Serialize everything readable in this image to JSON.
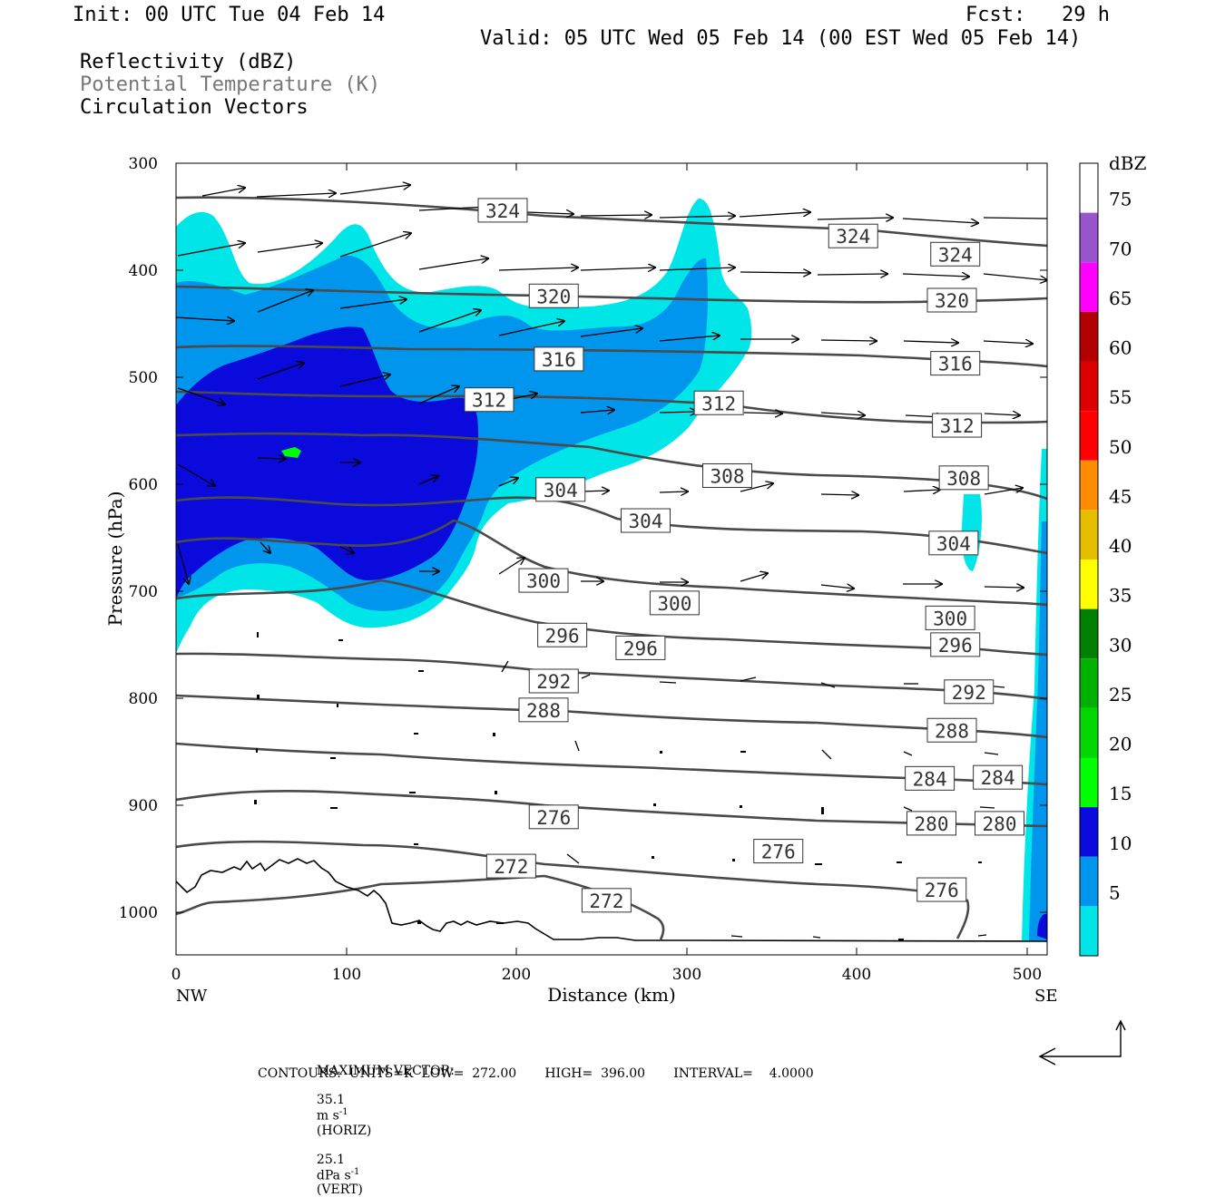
{
  "header": {
    "init": "Init: 00 UTC Tue 04 Feb 14",
    "fcst": "Fcst:   29 h",
    "valid": "Valid: 05 UTC Wed 05 Feb 14 (00 EST Wed 05 Feb 14)",
    "fields": [
      "Reflectivity (dBZ)",
      "Potential Temperature (K)",
      "Circulation Vectors"
    ]
  },
  "colors": {
    "refl_5": "#00e5e8",
    "refl_10": "#0096ee",
    "refl_15": "#0a0adc",
    "refl_20": "#00ff00",
    "contour": "#4a4a4a",
    "grey_text": "#777777"
  },
  "chart_data": {
    "type": "contour",
    "xlabel": "Distance (km)",
    "ylabel": "Pressure (hPa)",
    "xlim": [
      0,
      512
    ],
    "ylim": [
      300,
      1040
    ],
    "y_inverted": true,
    "x_ticks": [
      "0",
      "100",
      "200",
      "300",
      "400",
      "500"
    ],
    "y_ticks": [
      "300",
      "400",
      "500",
      "600",
      "700",
      "800",
      "900",
      "1000"
    ],
    "x_end_labels": {
      "left": "NW",
      "right": "SE"
    },
    "contour_field": "Potential Temperature (K)",
    "contour_labels": [
      {
        "value": "324",
        "x": 192,
        "p": 344
      },
      {
        "value": "324",
        "x": 398,
        "p": 368
      },
      {
        "value": "324",
        "x": 458,
        "p": 385
      },
      {
        "value": "320",
        "x": 222,
        "p": 424
      },
      {
        "value": "320",
        "x": 456,
        "p": 428
      },
      {
        "value": "316",
        "x": 225,
        "p": 483
      },
      {
        "value": "316",
        "x": 458,
        "p": 487
      },
      {
        "value": "312",
        "x": 184,
        "p": 521
      },
      {
        "value": "312",
        "x": 319,
        "p": 524
      },
      {
        "value": "312",
        "x": 459,
        "p": 545
      },
      {
        "value": "308",
        "x": 324,
        "p": 592
      },
      {
        "value": "308",
        "x": 463,
        "p": 594
      },
      {
        "value": "304",
        "x": 226,
        "p": 605
      },
      {
        "value": "304",
        "x": 276,
        "p": 634
      },
      {
        "value": "304",
        "x": 457,
        "p": 655
      },
      {
        "value": "300",
        "x": 216,
        "p": 690
      },
      {
        "value": "300",
        "x": 293,
        "p": 711
      },
      {
        "value": "300",
        "x": 455,
        "p": 725
      },
      {
        "value": "296",
        "x": 227,
        "p": 741
      },
      {
        "value": "296",
        "x": 273,
        "p": 753
      },
      {
        "value": "296",
        "x": 458,
        "p": 750
      },
      {
        "value": "292",
        "x": 222,
        "p": 784
      },
      {
        "value": "292",
        "x": 466,
        "p": 794
      },
      {
        "value": "288",
        "x": 216,
        "p": 811
      },
      {
        "value": "288",
        "x": 456,
        "p": 830
      },
      {
        "value": "284",
        "x": 443,
        "p": 875
      },
      {
        "value": "284",
        "x": 483,
        "p": 874
      },
      {
        "value": "280",
        "x": 444,
        "p": 917
      },
      {
        "value": "280",
        "x": 484,
        "p": 917
      },
      {
        "value": "276",
        "x": 222,
        "p": 911
      },
      {
        "value": "276",
        "x": 354,
        "p": 943
      },
      {
        "value": "276",
        "x": 450,
        "p": 979
      },
      {
        "value": "272",
        "x": 197,
        "p": 957
      },
      {
        "value": "272",
        "x": 253,
        "p": 989
      }
    ],
    "colorbar": {
      "title": "dBZ",
      "levels": [
        "5",
        "10",
        "15",
        "20",
        "25",
        "30",
        "35",
        "40",
        "45",
        "50",
        "55",
        "60",
        "65",
        "70",
        "75"
      ],
      "colors": [
        "#00e5e8",
        "#0096ee",
        "#0a0adc",
        "#00ff00",
        "#00d600",
        "#00b200",
        "#008000",
        "#ffff00",
        "#e6be00",
        "#ff8c00",
        "#ff0000",
        "#dd0000",
        "#b20000",
        "#ff00ff",
        "#9955cc"
      ]
    },
    "footer": {
      "max_vector_label": "MAXIMUM VECTOR:",
      "max_vector_h_value": "35.1",
      "max_vector_h_units": "m s",
      "max_vector_h_tag": "(HORIZ)",
      "max_vector_v_value": "25.1",
      "max_vector_v_units": "dPa s",
      "max_vector_v_tag": "(VERT)",
      "unit_exponent": "-1",
      "contours_line": "CONTOURS:  UNITS=K  LOW=  272.00       HIGH=  396.00       INTERVAL=    4.0000"
    }
  }
}
